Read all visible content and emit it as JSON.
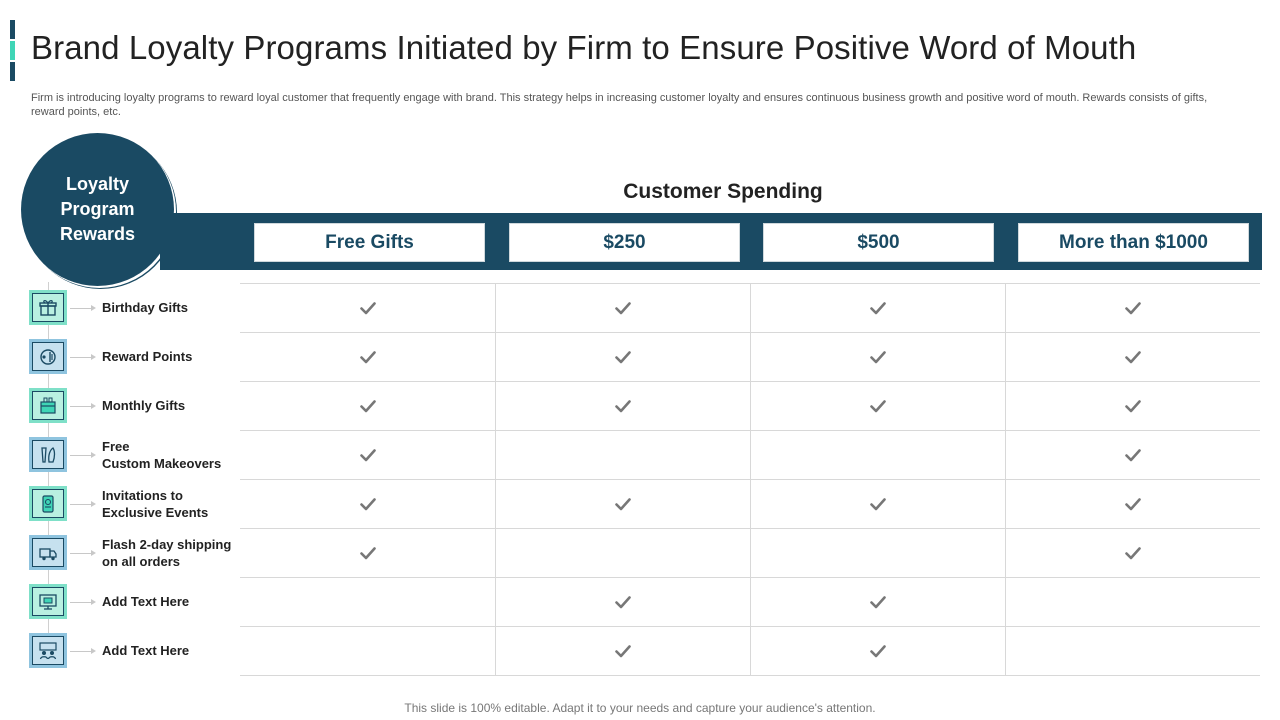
{
  "title": "Brand Loyalty Programs Initiated by Firm to Ensure Positive Word of Mouth",
  "subtitle": "Firm is introducing loyalty programs to reward loyal customer that frequently engage with brand. This strategy helps in increasing customer loyalty and ensures continuous business growth and positive word of mouth. Rewards consists of gifts, reward points, etc.",
  "circle_label": "Loyalty\nProgram\nRewards",
  "section_title": "Customer Spending",
  "columns": [
    "Free Gifts",
    "$250",
    "$500",
    "More than $1000"
  ],
  "rows": [
    {
      "label": "Birthday Gifts",
      "icon": "gift-icon",
      "icon_style": "teal",
      "checks": [
        true,
        true,
        true,
        true
      ]
    },
    {
      "label": "Reward Points",
      "icon": "reward-points-icon",
      "icon_style": "blue",
      "checks": [
        true,
        true,
        true,
        true
      ]
    },
    {
      "label": "Monthly Gifts",
      "icon": "monthly-gift-icon",
      "icon_style": "teal",
      "checks": [
        true,
        true,
        true,
        true
      ]
    },
    {
      "label": "Free\nCustom Makeovers",
      "icon": "makeover-icon",
      "icon_style": "blue",
      "checks": [
        true,
        false,
        false,
        true
      ]
    },
    {
      "label": "Invitations to\nExclusive Events",
      "icon": "invitation-icon",
      "icon_style": "teal",
      "checks": [
        true,
        true,
        true,
        true
      ]
    },
    {
      "label": "Flash 2-day shipping\non all orders",
      "icon": "delivery-truck-icon",
      "icon_style": "blue",
      "checks": [
        true,
        false,
        false,
        true
      ]
    },
    {
      "label": "Add Text Here",
      "icon": "monitor-icon",
      "icon_style": "teal",
      "checks": [
        false,
        true,
        true,
        false
      ]
    },
    {
      "label": "Add Text Here",
      "icon": "team-icon",
      "icon_style": "blue",
      "checks": [
        false,
        true,
        true,
        false
      ]
    }
  ],
  "footer": "This slide is 100% editable. Adapt it to your needs and capture your audience's attention.",
  "colors": {
    "navy": "#1a4a63",
    "teal": "#3fd5b6",
    "check": "#777777"
  }
}
